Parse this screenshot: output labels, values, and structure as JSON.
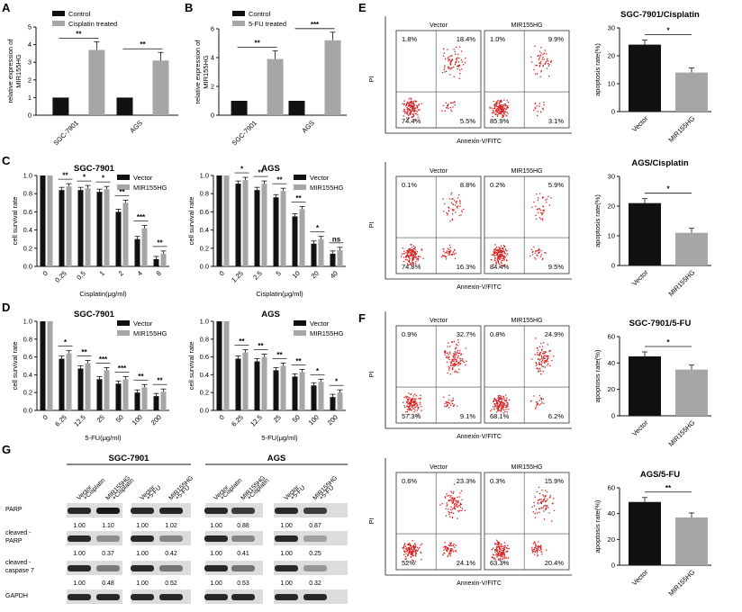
{
  "colors": {
    "black": "#111111",
    "gray": "#a6a6a6",
    "red": "#d42020"
  },
  "panels": {
    "A": {
      "label": "A",
      "legend": [
        "Control",
        "Cisplatin treated"
      ],
      "ylabel": [
        "relative expression of",
        "MIR155HG"
      ],
      "yticks": [
        "0",
        "1",
        "2",
        "3",
        "4",
        "5"
      ],
      "cats": [
        "SGC-7901",
        "AGS"
      ],
      "values": [
        [
          1.0,
          3.7
        ],
        [
          1.0,
          3.1
        ]
      ],
      "sigs": [
        "**",
        "**"
      ]
    },
    "B": {
      "label": "B",
      "legend": [
        "Control",
        "5-FU treated"
      ],
      "ylabel": [
        "relative expression of",
        "MIR155HG"
      ],
      "yticks": [
        "0",
        "2",
        "4",
        "6"
      ],
      "cats": [
        "SGC-7901",
        "AGS"
      ],
      "values": [
        [
          1.0,
          3.9
        ],
        [
          1.0,
          5.2
        ]
      ],
      "sigs": [
        "**",
        "***"
      ]
    },
    "C": {
      "label": "C"
    },
    "D": {
      "label": "D"
    },
    "E": {
      "label": "E"
    },
    "F": {
      "label": "F"
    },
    "G": {
      "label": "G"
    }
  },
  "survival_charts": [
    {
      "title": "SGC-7901",
      "legend": [
        "Vector",
        "MIR155HG"
      ],
      "ylabel": "cell survival rate",
      "yticks": [
        "0.0",
        "0.2",
        "0.4",
        "0.6",
        "0.8",
        "1.0"
      ],
      "xlabel": "Cisplatin(μg/ml)",
      "cats": [
        "0",
        "0.25",
        "0.5",
        "1",
        "2",
        "4",
        "8"
      ],
      "vector": [
        1.0,
        0.84,
        0.84,
        0.82,
        0.6,
        0.3,
        0.08
      ],
      "mir": [
        1.0,
        0.88,
        0.86,
        0.85,
        0.7,
        0.42,
        0.14
      ],
      "sigs": [
        "",
        "**",
        "*",
        "*",
        "**",
        "***",
        "**"
      ]
    },
    {
      "title": "AGS",
      "legend": [
        "Vector",
        "MIR155HG"
      ],
      "ylabel": "cell survival rate",
      "yticks": [
        "0.0",
        "0.2",
        "0.4",
        "0.6",
        "0.8",
        "1.0"
      ],
      "xlabel": "Cisplatin(μg/ml)",
      "cats": [
        "0",
        "1.25",
        "2.5",
        "5",
        "10",
        "20",
        "40"
      ],
      "vector": [
        1.0,
        0.91,
        0.84,
        0.76,
        0.55,
        0.25,
        0.14
      ],
      "mir": [
        1.0,
        0.95,
        0.91,
        0.83,
        0.63,
        0.3,
        0.18
      ],
      "sigs": [
        "",
        "*",
        "**",
        "**",
        "**",
        "*",
        "ns"
      ]
    },
    {
      "title": "SGC-7901",
      "legend": [
        "Vector",
        "MIR155HG"
      ],
      "ylabel": "cell survival rate",
      "yticks": [
        "0.0",
        "0.2",
        "0.4",
        "0.6",
        "0.8",
        "1.0"
      ],
      "xlabel": "5-FU(μg/ml)",
      "cats": [
        "0",
        "6.25",
        "12.5",
        "25",
        "50",
        "100",
        "200"
      ],
      "vector": [
        1.0,
        0.58,
        0.47,
        0.35,
        0.3,
        0.2,
        0.16
      ],
      "mir": [
        1.0,
        0.64,
        0.53,
        0.45,
        0.35,
        0.26,
        0.21
      ],
      "sigs": [
        "",
        "*",
        "**",
        "***",
        "***",
        "**",
        "**"
      ]
    },
    {
      "title": "AGS",
      "legend": [
        "Vector",
        "MIR155HG"
      ],
      "ylabel": "cell survival rate",
      "yticks": [
        "0.0",
        "0.2",
        "0.4",
        "0.6",
        "0.8",
        "1.0"
      ],
      "xlabel": "5-FU(μg/ml)",
      "cats": [
        "0",
        "6.25",
        "12.5",
        "25",
        "50",
        "100",
        "200"
      ],
      "vector": [
        1.0,
        0.58,
        0.55,
        0.45,
        0.38,
        0.28,
        0.15
      ],
      "mir": [
        1.0,
        0.65,
        0.6,
        0.5,
        0.43,
        0.32,
        0.2
      ],
      "sigs": [
        "",
        "**",
        "**",
        "**",
        "**",
        "*",
        "*"
      ]
    }
  ],
  "flow": {
    "ylabel": "PI",
    "xlabel": "Annexin-V/FITC",
    "rows": [
      {
        "vector": {
          "title": "Vector",
          "q": [
            "1.8%",
            "18.4%",
            "74.4%",
            "5.5%"
          ]
        },
        "mir": {
          "title": "MIR155HG",
          "q": [
            "1.0%",
            "9.9%",
            "85.9%",
            "3.1%"
          ]
        }
      },
      {
        "vector": {
          "title": "Vector",
          "q": [
            "0.1%",
            "8.8%",
            "74.8%",
            "16.3%"
          ]
        },
        "mir": {
          "title": "MIR155HG",
          "q": [
            "0.2%",
            "5.9%",
            "84.4%",
            "9.5%"
          ]
        }
      },
      {
        "vector": {
          "title": "Vector",
          "q": [
            "0.9%",
            "32.7%",
            "57.3%",
            "9.1%"
          ]
        },
        "mir": {
          "title": "MIR155HG",
          "q": [
            "0.8%",
            "24.9%",
            "68.1%",
            "6.2%"
          ]
        }
      },
      {
        "vector": {
          "title": "Vector",
          "q": [
            "0.6%",
            "23.3%",
            "52%",
            "24.1%"
          ]
        },
        "mir": {
          "title": "MIR155HG",
          "q": [
            "0.3%",
            "15.9%",
            "63.3%",
            "20.4%"
          ]
        }
      }
    ]
  },
  "apoptosis_charts": [
    {
      "title": "SGC-7901/Cisplatin",
      "ylabel": "apoptosis rate(%)",
      "yticks": [
        "0",
        "10",
        "20",
        "30"
      ],
      "cats": [
        "Vector",
        "MIR155HG"
      ],
      "values": [
        24,
        14
      ],
      "sig": "*"
    },
    {
      "title": "AGS/Cisplatin",
      "ylabel": "apoptosis rate(%)",
      "yticks": [
        "0",
        "10",
        "20",
        "30"
      ],
      "cats": [
        "Vector",
        "MIR155HG"
      ],
      "values": [
        21,
        11
      ],
      "sig": "*"
    },
    {
      "title": "SGC-7901/5-FU",
      "ylabel": "apoptosis rate(%)",
      "yticks": [
        "0",
        "20",
        "40",
        "60"
      ],
      "cats": [
        "Vector",
        "MIR155HG"
      ],
      "values": [
        45,
        35
      ],
      "sig": "*"
    },
    {
      "title": "AGS/5-FU",
      "ylabel": "apoptosis rate(%)",
      "yticks": [
        "0",
        "20",
        "40",
        "60"
      ],
      "cats": [
        "Vector",
        "MIR155HG"
      ],
      "values": [
        49,
        37
      ],
      "sig": "**"
    }
  ],
  "western": {
    "groups": [
      {
        "title": "SGC-7901",
        "lanes": [
          [
            "Vector",
            "+Cisplatin"
          ],
          [
            "MIR155HG",
            "+Cisplatin"
          ],
          [
            "Vector",
            "+5-FU"
          ],
          [
            "MIR155HG",
            "+5-FU"
          ]
        ]
      },
      {
        "title": "AGS",
        "lanes": [
          [
            "Vector",
            "+Cisplatin"
          ],
          [
            "MIR155HG",
            "+Cisplatin"
          ],
          [
            "Vector",
            "+5-FU"
          ],
          [
            "MIR155HG",
            "+5-FU"
          ]
        ]
      }
    ],
    "rows": [
      {
        "label": [
          "PARP"
        ],
        "values": [
          "1.00",
          "1.10",
          "1.00",
          "1.02",
          "1.00",
          "0.88",
          "1.00",
          "0.87"
        ]
      },
      {
        "label": [
          "cleaved -",
          "PARP"
        ],
        "values": [
          "1.00",
          "0.37",
          "1.00",
          "0.42",
          "1.00",
          "0.41",
          "1.00",
          "0.25"
        ]
      },
      {
        "label": [
          "cleaved -",
          "caspase 7"
        ],
        "values": [
          "1.00",
          "0.48",
          "1.00",
          "0.52",
          "1.00",
          "0.53",
          "1.00",
          "0.32"
        ]
      },
      {
        "label": [
          "GAPDH"
        ],
        "values": []
      }
    ]
  }
}
